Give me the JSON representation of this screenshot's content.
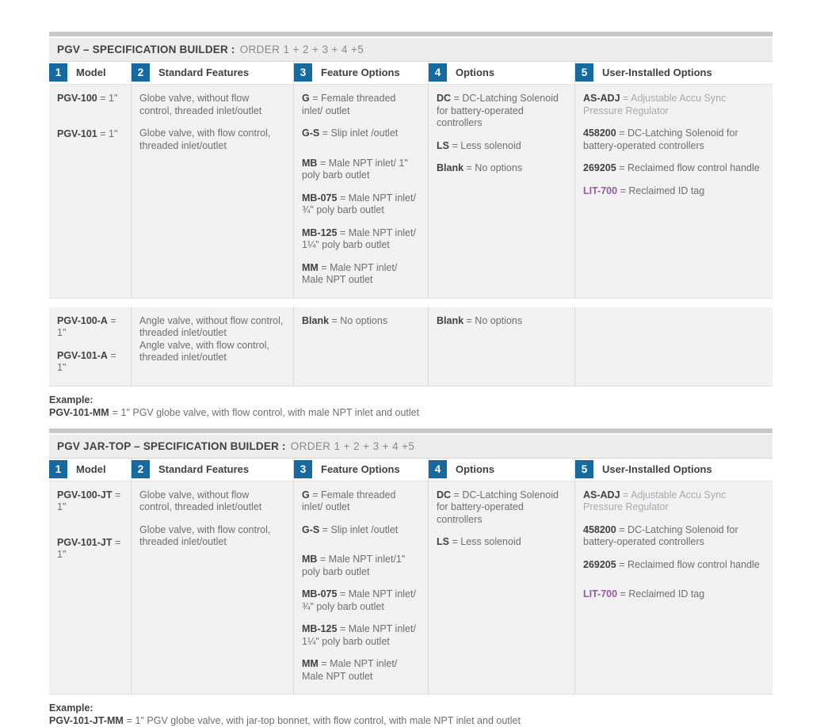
{
  "colors": {
    "accent_blue": "#176a9f",
    "purple_code": "#965ba0",
    "divider_bar_gray": "#c7c8ca",
    "cell_background": "#f1f1f2"
  },
  "sections": [
    {
      "title_bold": "PGV – SPECIFICATION BUILDER :",
      "title_order": "ORDER 1 + 2 + 3 + 4 +5",
      "columns": [
        {
          "num": "1",
          "label": "Model"
        },
        {
          "num": "2",
          "label": "Standard Features"
        },
        {
          "num": "3",
          "label": "Feature Options"
        },
        {
          "num": "4",
          "label": "Options"
        },
        {
          "num": "5",
          "label": "User-Installed Options"
        }
      ],
      "row_groups": [
        {
          "cells": [
            {
              "entries": [
                {
                  "code": "PGV-100",
                  "desc": "= 1\""
                },
                {
                  "code": "PGV-101",
                  "desc": "= 1\"",
                  "gap": "xl"
                }
              ]
            },
            {
              "entries": [
                {
                  "desc": "Globe valve, without flow control, threaded inlet/outlet"
                },
                {
                  "desc": "Globe valve, with flow control, threaded inlet/outlet"
                }
              ]
            },
            {
              "entries": [
                {
                  "code": "G",
                  "desc": "= Female threaded inlet/ outlet"
                },
                {
                  "code": "G-S",
                  "desc": "= Slip inlet /outlet"
                },
                {
                  "code": "MB",
                  "desc": "= Male NPT inlet/ 1\" poly barb outlet",
                  "gap": "lg"
                },
                {
                  "code": "MB-075",
                  "desc": "= Male NPT inlet/ ¾\" poly barb outlet"
                },
                {
                  "code": "MB-125",
                  "desc": "= Male NPT inlet/ 1¼\" poly barb outlet"
                },
                {
                  "code": "MM",
                  "desc": "= Male NPT inlet/ Male NPT outlet"
                }
              ]
            },
            {
              "entries": [
                {
                  "code": "DC",
                  "desc": "= DC-Latching Solenoid for battery-operated controllers"
                },
                {
                  "code": "LS",
                  "desc": "= Less solenoid"
                },
                {
                  "code": "Blank",
                  "desc": "= No options"
                }
              ]
            },
            {
              "entries": [
                {
                  "code": "AS-ADJ",
                  "desc": "= Adjustable Accu Sync Pressure Regulator",
                  "desc_light": true
                },
                {
                  "code": "458200",
                  "desc": "= DC-Latching Solenoid for battery-operated controllers"
                },
                {
                  "code": "269205",
                  "desc": "= Reclaimed flow control handle"
                },
                {
                  "code": "LIT-700",
                  "desc": "= Reclaimed ID tag",
                  "code_color": "purple"
                }
              ]
            }
          ]
        },
        {
          "cells": [
            {
              "entries": [
                {
                  "code": "PGV-100-A",
                  "desc": "= 1\""
                },
                {
                  "code": "PGV-101-A",
                  "desc": "= 1\""
                }
              ]
            },
            {
              "entries": [
                {
                  "desc": "Angle valve, without flow control, threaded inlet/outlet"
                },
                {
                  "desc": "Angle valve, with flow control, threaded inlet/outlet",
                  "gap": "none"
                }
              ]
            },
            {
              "entries": [
                {
                  "code": "Blank",
                  "desc": "= No options"
                }
              ]
            },
            {
              "entries": [
                {
                  "code": "Blank",
                  "desc": "= No options"
                }
              ]
            },
            {
              "entries": []
            }
          ]
        }
      ],
      "example": {
        "label": "Example:",
        "code": "PGV-101-MM",
        "text": "= 1\" PGV globe valve, with flow control, with male NPT inlet and outlet"
      }
    },
    {
      "title_bold": "PGV JAR-TOP – SPECIFICATION BUILDER :",
      "title_order": "ORDER 1 + 2 + 3 + 4 +5",
      "columns": [
        {
          "num": "1",
          "label": "Model"
        },
        {
          "num": "2",
          "label": "Standard Features"
        },
        {
          "num": "3",
          "label": "Feature Options"
        },
        {
          "num": "4",
          "label": "Options"
        },
        {
          "num": "5",
          "label": "User-Installed Options"
        }
      ],
      "row_groups": [
        {
          "cells": [
            {
              "entries": [
                {
                  "code": "PGV-100-JT",
                  "desc": "= 1\""
                },
                {
                  "code": "PGV-101-JT",
                  "desc": "= 1\"",
                  "gap": "xl"
                }
              ]
            },
            {
              "entries": [
                {
                  "desc": "Globe valve, without flow control, threaded inlet/outlet"
                },
                {
                  "desc": "Globe valve, with flow control, threaded inlet/outlet"
                }
              ]
            },
            {
              "entries": [
                {
                  "code": "G",
                  "desc": "= Female threaded inlet/ outlet"
                },
                {
                  "code": "G-S",
                  "desc": "= Slip inlet /outlet"
                },
                {
                  "code": "MB",
                  "desc": "= Male NPT inlet/1\" poly barb outlet",
                  "gap": "lg"
                },
                {
                  "code": "MB-075",
                  "desc": "= Male NPT inlet/ ¾\" poly barb outlet"
                },
                {
                  "code": "MB-125",
                  "desc": "= Male NPT inlet/ 1¼\" poly barb outlet"
                },
                {
                  "code": "MM",
                  "desc": "= Male NPT inlet/ Male NPT outlet"
                }
              ]
            },
            {
              "entries": [
                {
                  "code": "DC",
                  "desc": "= DC-Latching Solenoid for battery-operated controllers"
                },
                {
                  "code": "LS",
                  "desc": "= Less solenoid"
                }
              ]
            },
            {
              "entries": [
                {
                  "code": "AS-ADJ",
                  "desc": "= Adjustable Accu Sync Pressure Regulator",
                  "desc_light": true
                },
                {
                  "code": "458200",
                  "desc": "= DC-Latching Solenoid for battery-operated controllers"
                },
                {
                  "code": "269205",
                  "desc": "= Reclaimed flow control handle"
                },
                {
                  "code": "LIT-700",
                  "desc": "= Reclaimed ID tag",
                  "code_color": "purple",
                  "gap": "lg"
                }
              ]
            }
          ]
        }
      ],
      "example": {
        "label": "Example:",
        "code": "PGV-101-JT-MM",
        "text": "= 1\" PGV globe valve, with jar-top bonnet, with flow control, with male NPT inlet and outlet"
      }
    }
  ]
}
